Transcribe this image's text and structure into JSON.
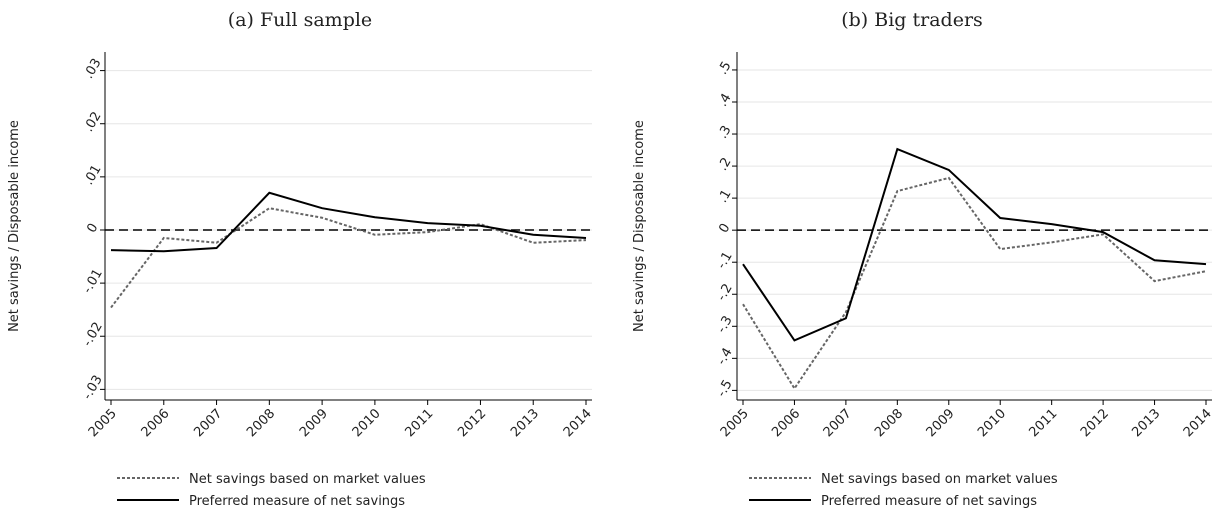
{
  "chart_data": [
    {
      "type": "line",
      "title": "(a) Full sample",
      "y_label": "Net savings / Disposable income",
      "categories": [
        "2005",
        "2006",
        "2007",
        "2008",
        "2009",
        "2010",
        "2011",
        "2012",
        "2013",
        "2014"
      ],
      "series": [
        {
          "name": "Net savings based on market values",
          "color": "#666666",
          "dash": "dotted",
          "values": [
            -0.0146,
            -0.0015,
            -0.0024,
            0.0041,
            0.0023,
            -0.0009,
            -0.0004,
            0.0011,
            -0.0024,
            -0.0019
          ]
        },
        {
          "name": "Preferred measure of net savings",
          "color": "#000000",
          "dash": "solid",
          "values": [
            -0.0038,
            -0.004,
            -0.0034,
            0.007,
            0.0041,
            0.0024,
            0.0013,
            0.0008,
            -0.0009,
            -0.0015
          ]
        }
      ],
      "ylim": [
        -0.032,
        0.0335
      ],
      "yticks": [
        {
          "value": -0.03,
          "label": "-.03"
        },
        {
          "value": -0.02,
          "label": "-.02"
        },
        {
          "value": -0.01,
          "label": "-.01"
        },
        0,
        {
          "value": 0.01,
          "label": ".01"
        },
        {
          "value": 0.02,
          "label": ".02"
        },
        {
          "value": 0.03,
          "label": ".03"
        }
      ],
      "hline": 0,
      "grid": true
    },
    {
      "type": "line",
      "title": "(b) Big traders",
      "y_label": "Net savings / Disposable income",
      "categories": [
        "2005",
        "2006",
        "2007",
        "2008",
        "2009",
        "2010",
        "2011",
        "2012",
        "2013",
        "2014"
      ],
      "series": [
        {
          "name": "Net savings based on market values",
          "color": "#666666",
          "dash": "dotted",
          "values": [
            -0.231,
            -0.494,
            -0.256,
            0.122,
            0.163,
            -0.059,
            -0.038,
            -0.013,
            -0.159,
            -0.128
          ]
        },
        {
          "name": "Preferred measure of net savings",
          "color": "#000000",
          "dash": "solid",
          "values": [
            -0.106,
            -0.344,
            -0.275,
            0.253,
            0.188,
            0.038,
            0.019,
            -0.006,
            -0.094,
            -0.106
          ]
        }
      ],
      "ylim": [
        -0.53,
        0.556
      ],
      "yticks": [
        {
          "value": -0.5,
          "label": "-.5"
        },
        {
          "value": -0.4,
          "label": "-.4"
        },
        {
          "value": -0.3,
          "label": "-.3"
        },
        {
          "value": -0.2,
          "label": "-.2"
        },
        {
          "value": -0.1,
          "label": "-.1"
        },
        0,
        {
          "value": 0.1,
          "label": ".1"
        },
        {
          "value": 0.2,
          "label": ".2"
        },
        {
          "value": 0.3,
          "label": ".3"
        },
        {
          "value": 0.4,
          "label": ".4"
        },
        {
          "value": 0.5,
          "label": ".5"
        }
      ],
      "hline": 0,
      "grid": true
    }
  ]
}
